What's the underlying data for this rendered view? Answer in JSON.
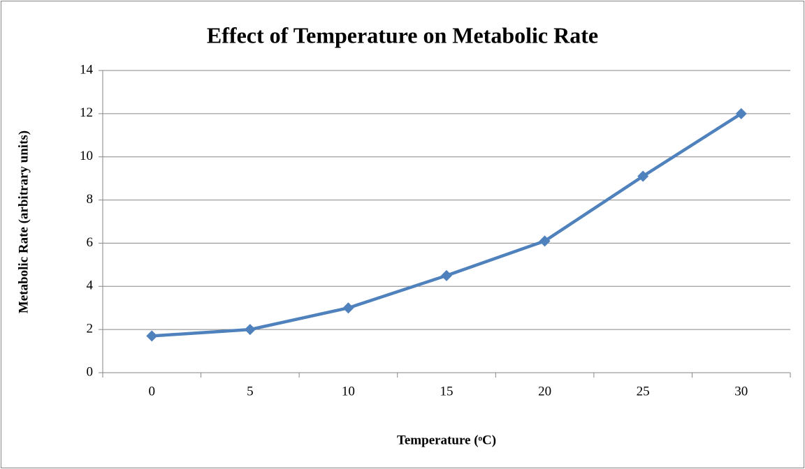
{
  "chart_data": {
    "type": "line",
    "title": "Effect of Temperature on Metabolic Rate",
    "x_label": "Temperature (ᵒC)",
    "y_label": "Metabolic Rate (arbitrary units)",
    "categories": [
      "0",
      "5",
      "10",
      "15",
      "20",
      "25",
      "30"
    ],
    "series": [
      {
        "name": "Metabolic Rate",
        "color": "#4f81bd",
        "values": [
          1.7,
          2,
          3,
          4.5,
          6.1,
          9.1,
          12
        ]
      }
    ],
    "ylim": [
      0,
      14
    ],
    "yticks": [
      0,
      2,
      4,
      6,
      8,
      10,
      12,
      14
    ],
    "grid": true,
    "legend": false
  }
}
